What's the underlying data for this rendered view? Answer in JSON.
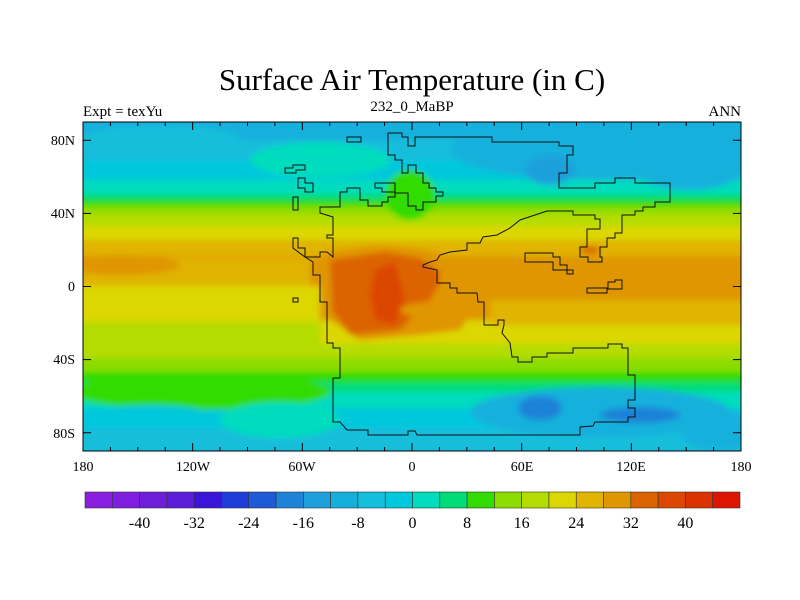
{
  "title": "Surface Air Temperature (in C)",
  "left_string": "Expt = texYu",
  "center_string": "232_0_MaBP",
  "right_string": "ANN",
  "x_axis": {
    "ticks": [
      "180",
      "120W",
      "60W",
      "0",
      "60E",
      "120E",
      "180"
    ],
    "lon_values": [
      -180,
      -120,
      -60,
      0,
      60,
      120,
      180
    ]
  },
  "y_axis": {
    "ticks": [
      "80N",
      "40N",
      "0",
      "40S",
      "80S"
    ],
    "lat_values": [
      80,
      40,
      0,
      -40,
      -80
    ]
  },
  "colorbar": {
    "levels_min": -44,
    "levels_max": 44,
    "level_step": 4,
    "labels": [
      "-40",
      "-32",
      "-24",
      "-16",
      "-8",
      "0",
      "8",
      "16",
      "24",
      "32",
      "40"
    ],
    "colors": [
      "#8a1ee0",
      "#7d1ee0",
      "#6e1ed8",
      "#5c1ed8",
      "#3a14d8",
      "#1e3cd8",
      "#1e5ad8",
      "#1e82d8",
      "#1ea0dc",
      "#14b0dc",
      "#14bedc",
      "#00c8dc",
      "#00dcbe",
      "#00dc78",
      "#32dc00",
      "#8cdc00",
      "#b4dc00",
      "#dcd700",
      "#e0b400",
      "#e09600",
      "#dc6400",
      "#dc4600",
      "#dc3200",
      "#dc1400"
    ]
  },
  "chart_data": {
    "type": "heatmap",
    "title": "Surface Air Temperature (in C)",
    "subtitle": "232_0_MaBP",
    "xlabel": "",
    "ylabel": "",
    "xlim": [
      -180,
      180
    ],
    "ylim": [
      -90,
      90
    ],
    "units": "C",
    "zonal_pattern_approx": [
      {
        "lat": 80,
        "value": -10
      },
      {
        "lat": 60,
        "value": -2
      },
      {
        "lat": 45,
        "value": 8
      },
      {
        "lat": 30,
        "value": 20
      },
      {
        "lat": 10,
        "value": 28
      },
      {
        "lat": 0,
        "value": 30
      },
      {
        "lat": -20,
        "value": 28
      },
      {
        "lat": -40,
        "value": 16
      },
      {
        "lat": -55,
        "value": 4
      },
      {
        "lat": -80,
        "value": -12
      }
    ],
    "max_region_approx": {
      "lon": -20,
      "lat": 10,
      "value": 38
    }
  }
}
